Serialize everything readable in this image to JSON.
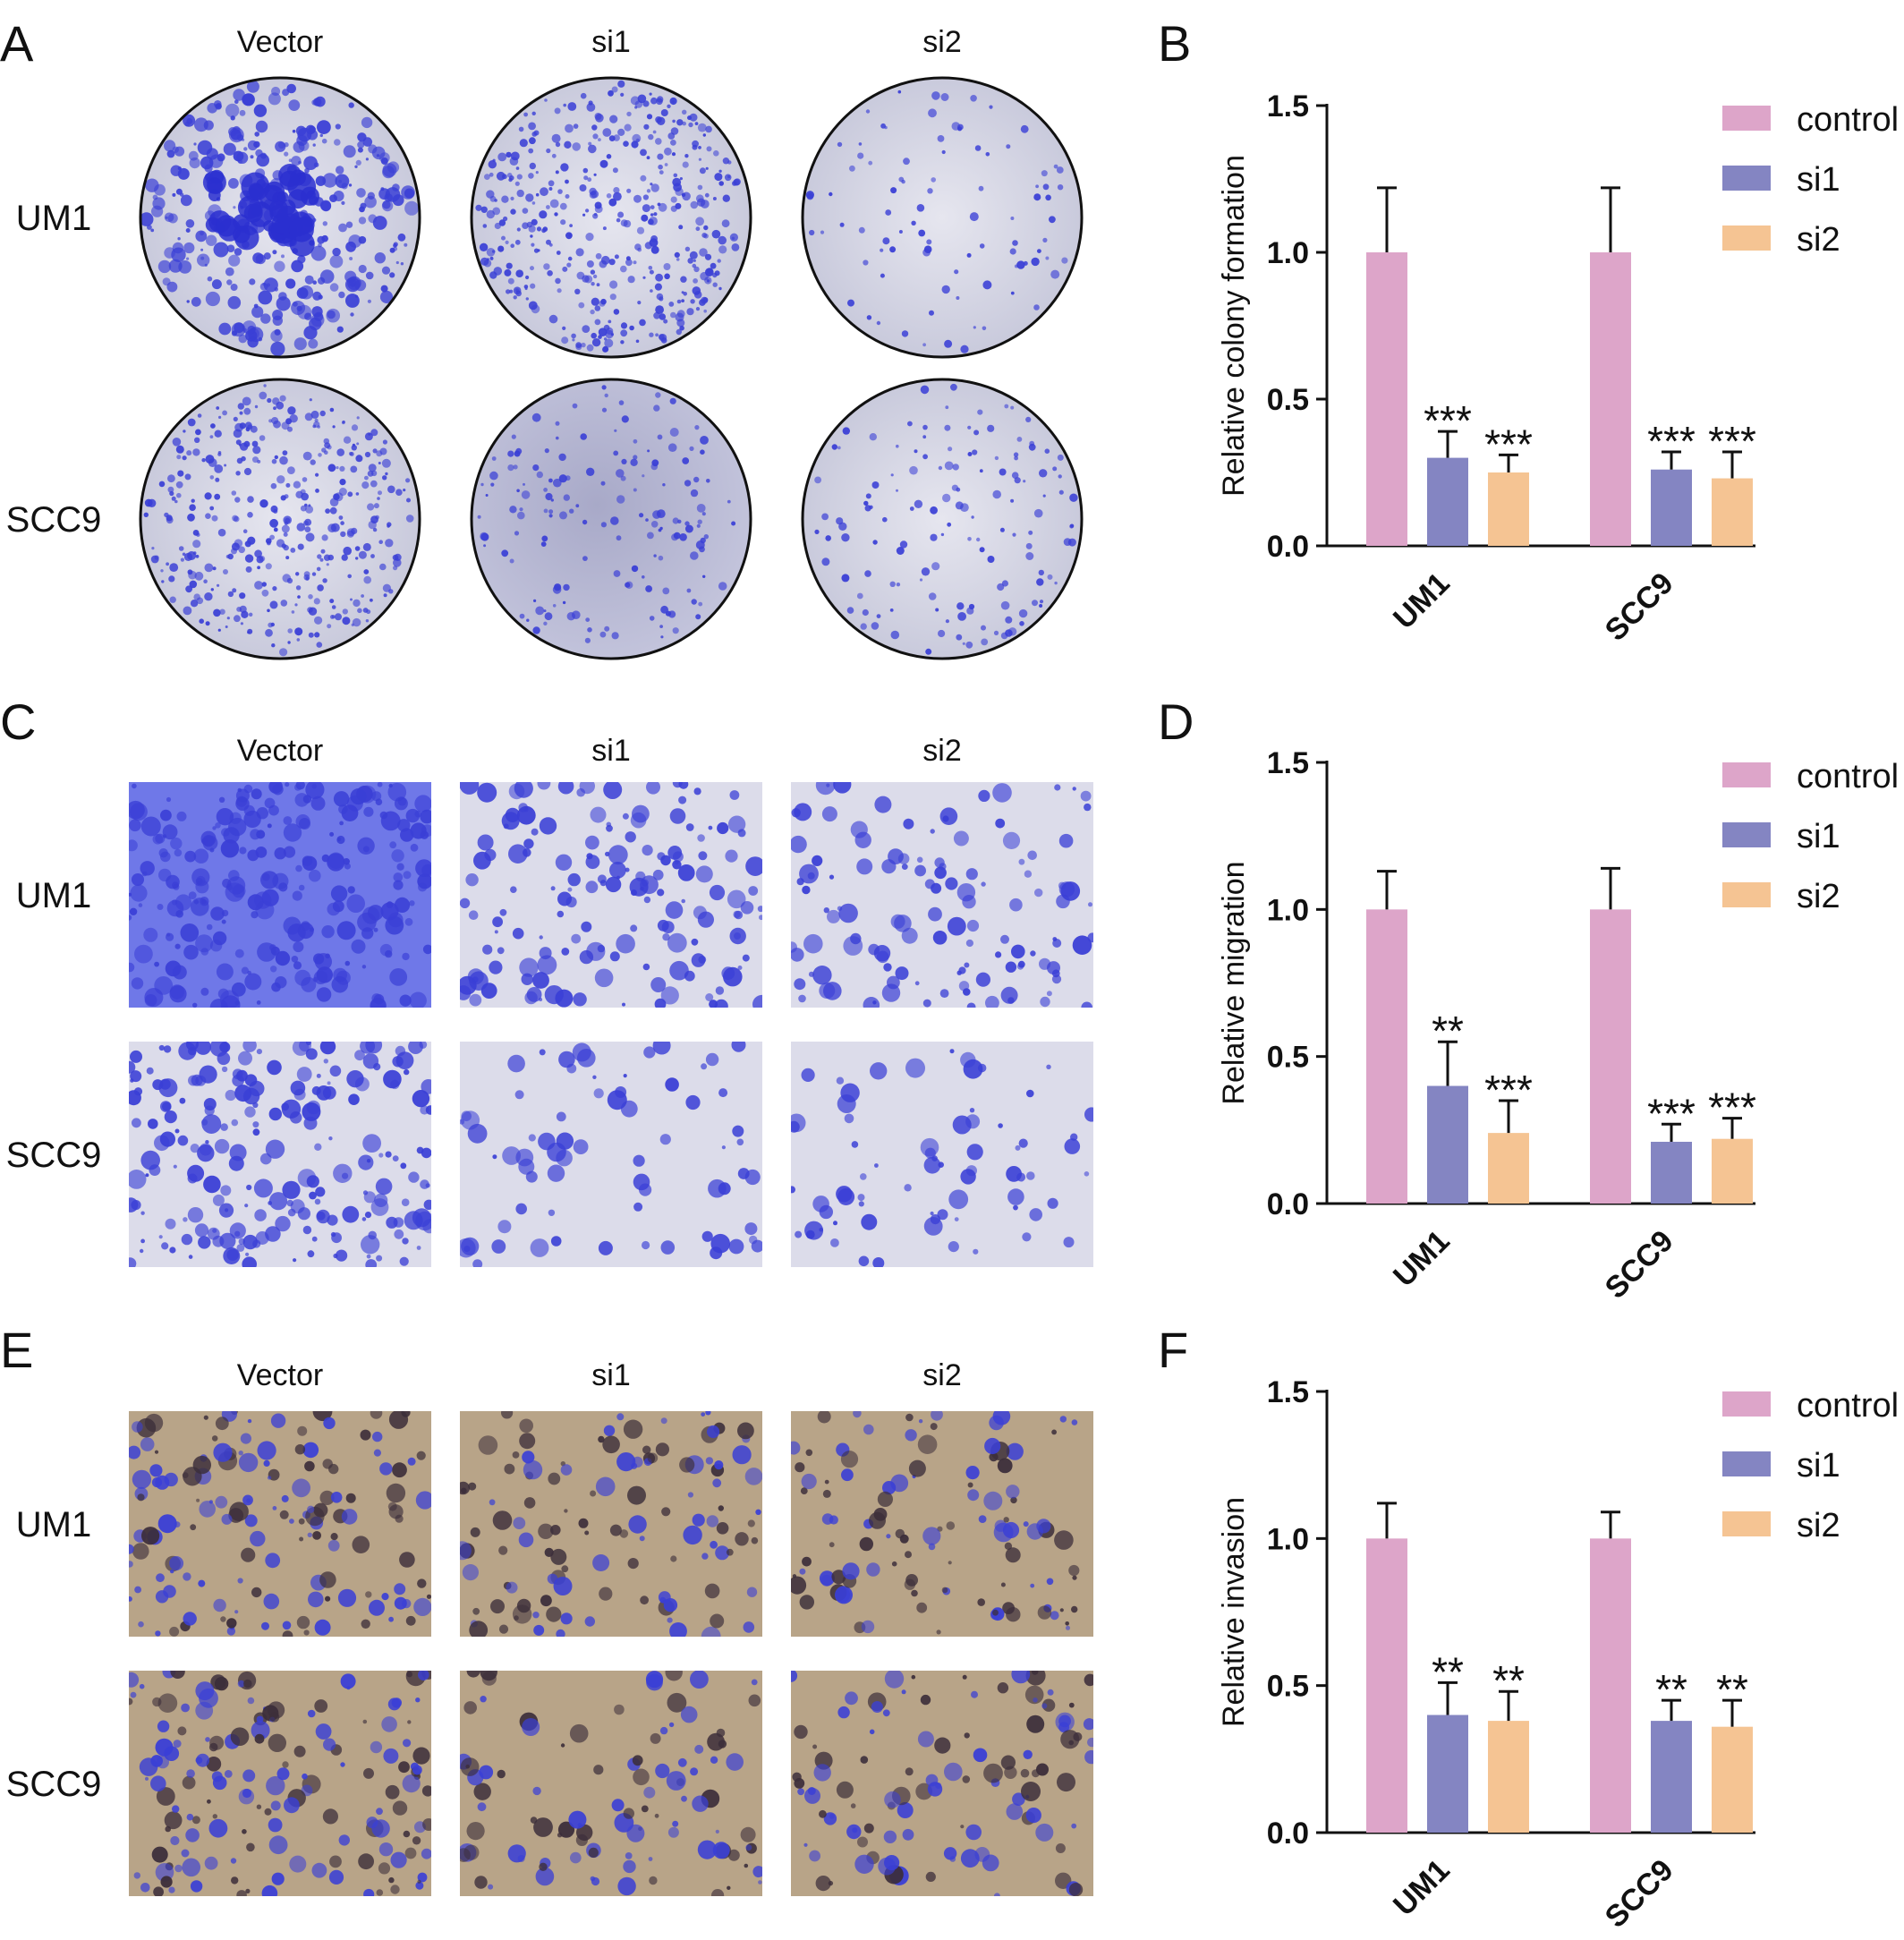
{
  "colors": {
    "control": "#dda5c9",
    "si1": "#8485c2",
    "si2": "#f5c493",
    "stain": "#3a3fd6",
    "plate_bg": "#d7d8e6",
    "transwell_bg_migration": "#dcdcea",
    "transwell_bg_invasion": "#b8a488"
  },
  "image_panels": [
    {
      "letter": "A",
      "kind": "colony-plates",
      "columns": [
        "Vector",
        "si1",
        "si2"
      ],
      "rows": [
        "UM1",
        "SCC9"
      ]
    },
    {
      "letter": "C",
      "kind": "transwell-migration",
      "columns": [
        "Vector",
        "si1",
        "si2"
      ],
      "rows": [
        "UM1",
        "SCC9"
      ]
    },
    {
      "letter": "E",
      "kind": "transwell-invasion",
      "columns": [
        "Vector",
        "si1",
        "si2"
      ],
      "rows": [
        "UM1",
        "SCC9"
      ]
    }
  ],
  "chart_data": [
    {
      "letter": "B",
      "type": "bar",
      "ylabel": "Relative colony formation",
      "categories": [
        "UM1",
        "SCC9"
      ],
      "ylim": [
        0,
        1.5
      ],
      "yticks": [
        "0.0",
        "0.5",
        "1.0",
        "1.5"
      ],
      "legend_position": "top-right",
      "series": [
        {
          "name": "control",
          "values": [
            1.0,
            1.0
          ],
          "errors": [
            0.22,
            0.22
          ],
          "sig": [
            "",
            ""
          ]
        },
        {
          "name": "si1",
          "values": [
            0.3,
            0.26
          ],
          "errors": [
            0.09,
            0.06
          ],
          "sig": [
            "***",
            "***"
          ]
        },
        {
          "name": "si2",
          "values": [
            0.25,
            0.23
          ],
          "errors": [
            0.06,
            0.09
          ],
          "sig": [
            "***",
            "***"
          ]
        }
      ]
    },
    {
      "letter": "D",
      "type": "bar",
      "ylabel": "Relative migration",
      "categories": [
        "UM1",
        "SCC9"
      ],
      "ylim": [
        0,
        1.5
      ],
      "yticks": [
        "0.0",
        "0.5",
        "1.0",
        "1.5"
      ],
      "legend_position": "top-right",
      "series": [
        {
          "name": "control",
          "values": [
            1.0,
            1.0
          ],
          "errors": [
            0.13,
            0.14
          ],
          "sig": [
            "",
            ""
          ]
        },
        {
          "name": "si1",
          "values": [
            0.4,
            0.21
          ],
          "errors": [
            0.15,
            0.06
          ],
          "sig": [
            "**",
            "***"
          ]
        },
        {
          "name": "si2",
          "values": [
            0.24,
            0.22
          ],
          "errors": [
            0.11,
            0.07
          ],
          "sig": [
            "***",
            "***"
          ]
        }
      ]
    },
    {
      "letter": "F",
      "type": "bar",
      "ylabel": "Relative invasion",
      "categories": [
        "UM1",
        "SCC9"
      ],
      "ylim": [
        0,
        1.5
      ],
      "yticks": [
        "0.0",
        "0.5",
        "1.0",
        "1.5"
      ],
      "legend_position": "top-right",
      "series": [
        {
          "name": "control",
          "values": [
            1.0,
            1.0
          ],
          "errors": [
            0.12,
            0.09
          ],
          "sig": [
            "",
            ""
          ]
        },
        {
          "name": "si1",
          "values": [
            0.4,
            0.38
          ],
          "errors": [
            0.11,
            0.07
          ],
          "sig": [
            "**",
            "**"
          ]
        },
        {
          "name": "si2",
          "values": [
            0.38,
            0.36
          ],
          "errors": [
            0.1,
            0.09
          ],
          "sig": [
            "**",
            "**"
          ]
        }
      ]
    }
  ]
}
